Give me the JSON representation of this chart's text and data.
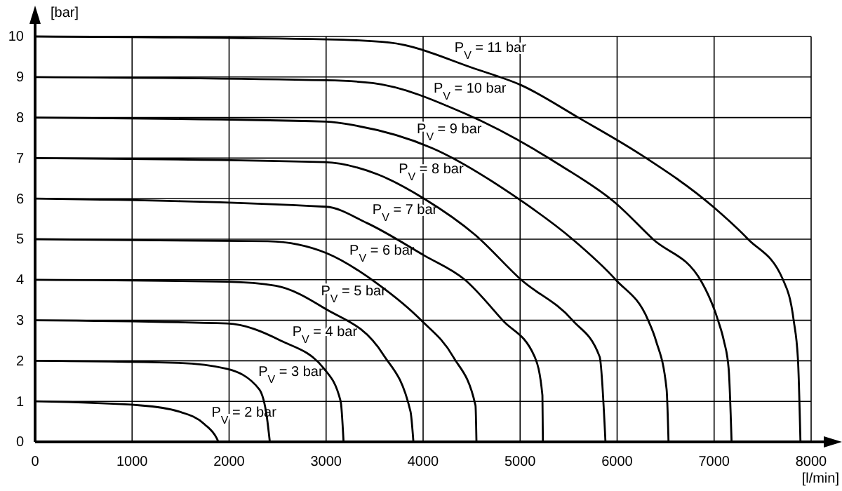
{
  "chart_data": {
    "type": "line",
    "xlabel": "[l/min]",
    "ylabel": "[bar]",
    "xlim": [
      0,
      8000
    ],
    "ylim": [
      0,
      10
    ],
    "xticks": [
      0,
      1000,
      2000,
      3000,
      4000,
      5000,
      6000,
      7000,
      8000
    ],
    "yticks": [
      0,
      1,
      2,
      3,
      4,
      5,
      6,
      7,
      8,
      9,
      10
    ],
    "grid": true,
    "marker": "none",
    "line_style": "solid",
    "color": "#000000",
    "series": [
      {
        "name": "P$_{V}$ = 2 bar",
        "x": [
          0,
          1090,
          1480,
          1750,
          1870,
          1890
        ],
        "values": [
          1,
          0.9,
          0.75,
          0.43,
          0.1,
          0
        ]
      },
      {
        "name": "P$_{V}$ = 3 bar",
        "x": [
          0,
          1480,
          1980,
          2310,
          2390,
          2420
        ],
        "values": [
          2,
          1.95,
          1.8,
          1.3,
          0.6,
          0
        ]
      },
      {
        "name": "P$_{V}$ = 4 bar",
        "x": [
          0,
          1980,
          2530,
          2980,
          3150,
          3180
        ],
        "values": [
          3,
          2.92,
          2.5,
          1.8,
          1,
          0
        ]
      },
      {
        "name": "P$_{V}$ = 5 bar",
        "x": [
          0,
          1980,
          2480,
          2980,
          3590,
          3870,
          3900
        ],
        "values": [
          4,
          3.95,
          3.85,
          3.3,
          2.15,
          0.75,
          0
        ]
      },
      {
        "name": "P$_{V}$ = 6 bar",
        "x": [
          0,
          2400,
          3010,
          3530,
          3980,
          4310,
          4540,
          4550
        ],
        "values": [
          5,
          4.95,
          4.65,
          3.9,
          3,
          2.1,
          0.9,
          0
        ]
      },
      {
        "name": "P$_{V}$ = 7 bar",
        "x": [
          0,
          3000,
          3420,
          4010,
          4430,
          4820,
          5150,
          5230,
          5235
        ],
        "values": [
          6,
          5.8,
          5.4,
          4.6,
          4,
          3,
          2.1,
          1.15,
          0
        ]
      },
      {
        "name": "P$_{V}$ = 8 bar",
        "x": [
          0,
          2980,
          3530,
          4010,
          4540,
          5010,
          5540,
          5820,
          5880
        ],
        "values": [
          7,
          6.9,
          6.6,
          6,
          5.1,
          4,
          3,
          2.1,
          0
        ]
      },
      {
        "name": "P$_{V}$ = 9 bar",
        "x": [
          0,
          3000,
          3310,
          4090,
          4980,
          5540,
          5985,
          6320,
          6400,
          6510,
          6530
        ],
        "values": [
          8,
          7.9,
          7.8,
          7.25,
          6,
          5,
          4,
          3,
          2.5,
          1.3,
          0
        ]
      },
      {
        "name": "P$_{V}$ = 10 bar",
        "x": [
          0,
          3000,
          3480,
          4430,
          5430,
          5980,
          6370,
          6870,
          7040,
          7100,
          7150,
          7180
        ],
        "values": [
          9,
          8.92,
          8.85,
          8.1,
          6.8,
          5.9,
          5,
          3.95,
          3,
          2.5,
          1.8,
          0
        ]
      },
      {
        "name": "P$_{V}$ = 11 bar",
        "x": [
          0,
          3000,
          3650,
          4540,
          5010,
          5600,
          6235,
          6990,
          7350,
          7710,
          7820,
          7865,
          7890
        ],
        "values": [
          10,
          9.93,
          9.85,
          9.2,
          8.8,
          8,
          7.1,
          5.8,
          5,
          4,
          3,
          2,
          0
        ]
      }
    ]
  }
}
